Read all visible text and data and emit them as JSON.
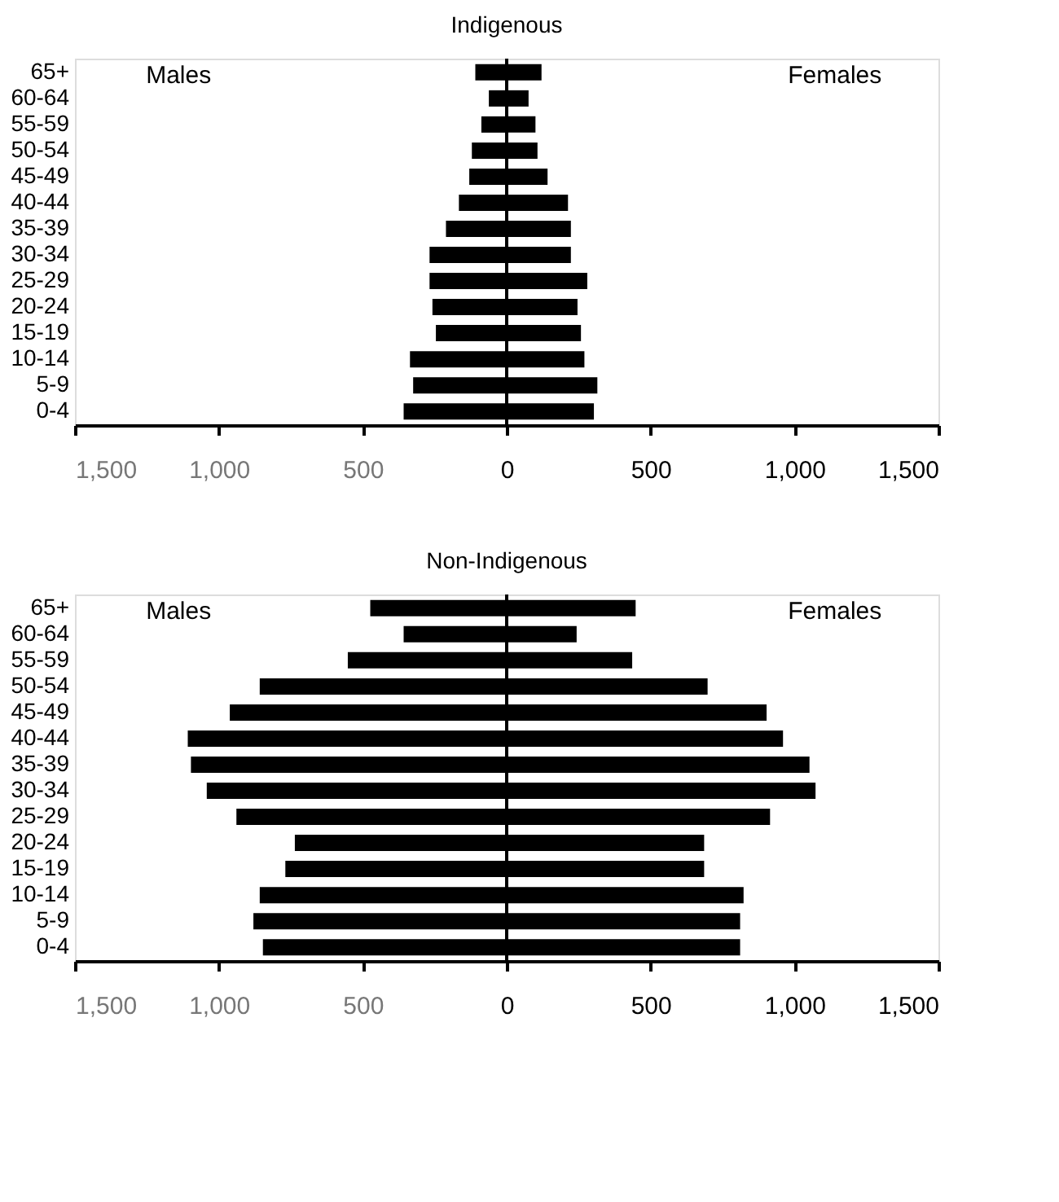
{
  "chart_data": [
    {
      "type": "bar",
      "orientation": "horizontal",
      "stacked": true,
      "title": "Indigenous",
      "categories": [
        "65+",
        "60-64",
        "55-59",
        "50-54",
        "45-49",
        "40-44",
        "35-39",
        "30-34",
        "25-29",
        "20-24",
        "15-19",
        "10-14",
        "5-9",
        "0-4"
      ],
      "series": [
        {
          "color": "#000000",
          "values": [
            -109,
            -62,
            -88,
            -121,
            -130,
            -166,
            -211,
            -268,
            -268,
            -258,
            -246,
            -336,
            -325,
            -358
          ]
        },
        {
          "color": "#000000",
          "values": [
            121,
            76,
            100,
            107,
            142,
            213,
            223,
            223,
            280,
            246,
            258,
            270,
            315,
            303
          ]
        }
      ],
      "annotations": [
        "Males",
        "Females"
      ],
      "xlim": [
        -1500,
        1500
      ],
      "xticks": [
        {
          "value": -1500,
          "label": "1,500"
        },
        {
          "value": -1000,
          "label": "1,000"
        },
        {
          "value": -500,
          "label": "500"
        },
        0,
        500,
        {
          "value": 1000,
          "label": "1,000"
        },
        {
          "value": 1500,
          "label": "1,500"
        }
      ],
      "ref_lines": [
        {
          "axis": "x",
          "value": 0,
          "color": "#000000"
        }
      ],
      "grid": false,
      "legend": false
    },
    {
      "type": "bar",
      "orientation": "horizontal",
      "stacked": true,
      "title": "Non-Indigenous",
      "categories": [
        "65+",
        "60-64",
        "55-59",
        "50-54",
        "45-49",
        "40-44",
        "35-39",
        "30-34",
        "25-29",
        "20-24",
        "15-19",
        "10-14",
        "5-9",
        "0-4"
      ],
      "series": [
        {
          "color": "#000000",
          "values": [
            -474,
            -358,
            -552,
            -858,
            -962,
            -1108,
            -1097,
            -1042,
            -939,
            -736,
            -769,
            -858,
            -880,
            -847
          ]
        },
        {
          "color": "#000000",
          "values": [
            448,
            243,
            436,
            698,
            903,
            960,
            1052,
            1073,
            915,
            686,
            686,
            823,
            811,
            811
          ]
        }
      ],
      "annotations": [
        "Males",
        "Females"
      ],
      "xlim": [
        -1500,
        1500
      ],
      "xticks": [
        {
          "value": -1500,
          "label": "1,500"
        },
        {
          "value": -1000,
          "label": "1,000"
        },
        {
          "value": -500,
          "label": "500"
        },
        0,
        500,
        {
          "value": 1000,
          "label": "1,000"
        },
        {
          "value": 1500,
          "label": "1,500"
        }
      ],
      "ref_lines": [
        {
          "axis": "x",
          "value": 0,
          "color": "#000000"
        }
      ],
      "grid": false,
      "legend": false
    }
  ]
}
